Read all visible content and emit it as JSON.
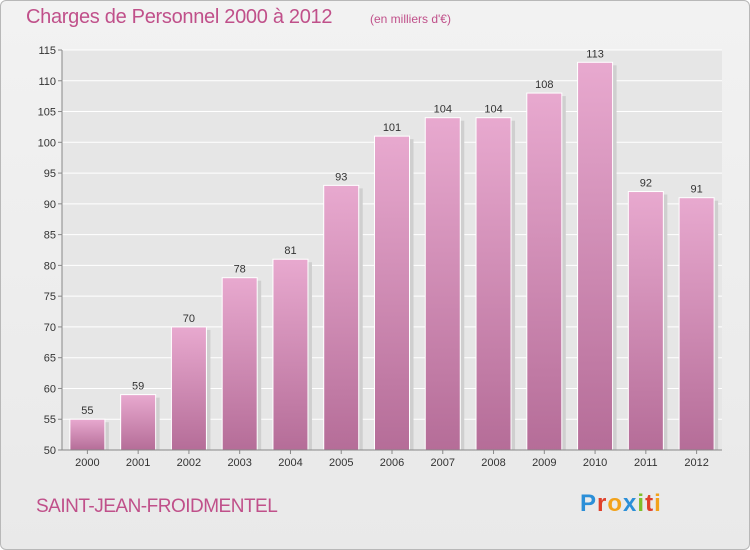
{
  "header": {
    "title": "Charges de Personnel 2000 à 2012",
    "subtitle": "(en milliers d'€)"
  },
  "footer": {
    "place": "SAINT-JEAN-FROIDMENTEL",
    "logo": "Proxiti"
  },
  "colors": {
    "accent": "#c0508a",
    "bar_top": "#e8a9cf",
    "bar_bottom": "#b56d98",
    "logo_letters": [
      "#2b8fd8",
      "#e0402a",
      "#f2a21b",
      "#2b8fd8",
      "#7fbf2a",
      "#e0402a",
      "#f2a21b"
    ]
  },
  "chart_data": {
    "type": "bar",
    "categories": [
      "2000",
      "2001",
      "2002",
      "2003",
      "2004",
      "2005",
      "2006",
      "2007",
      "2008",
      "2009",
      "2010",
      "2011",
      "2012"
    ],
    "values": [
      55,
      59,
      70,
      78,
      81,
      93,
      101,
      104,
      104,
      108,
      113,
      92,
      91
    ],
    "title": "Charges de Personnel 2000 à 2012",
    "subtitle": "(en milliers d'€)",
    "xlabel": "",
    "ylabel": "",
    "ylim": [
      50,
      115
    ],
    "yticks": [
      50,
      55,
      60,
      65,
      70,
      75,
      80,
      85,
      90,
      95,
      100,
      105,
      110,
      115
    ],
    "grid": true,
    "legend": "none"
  }
}
